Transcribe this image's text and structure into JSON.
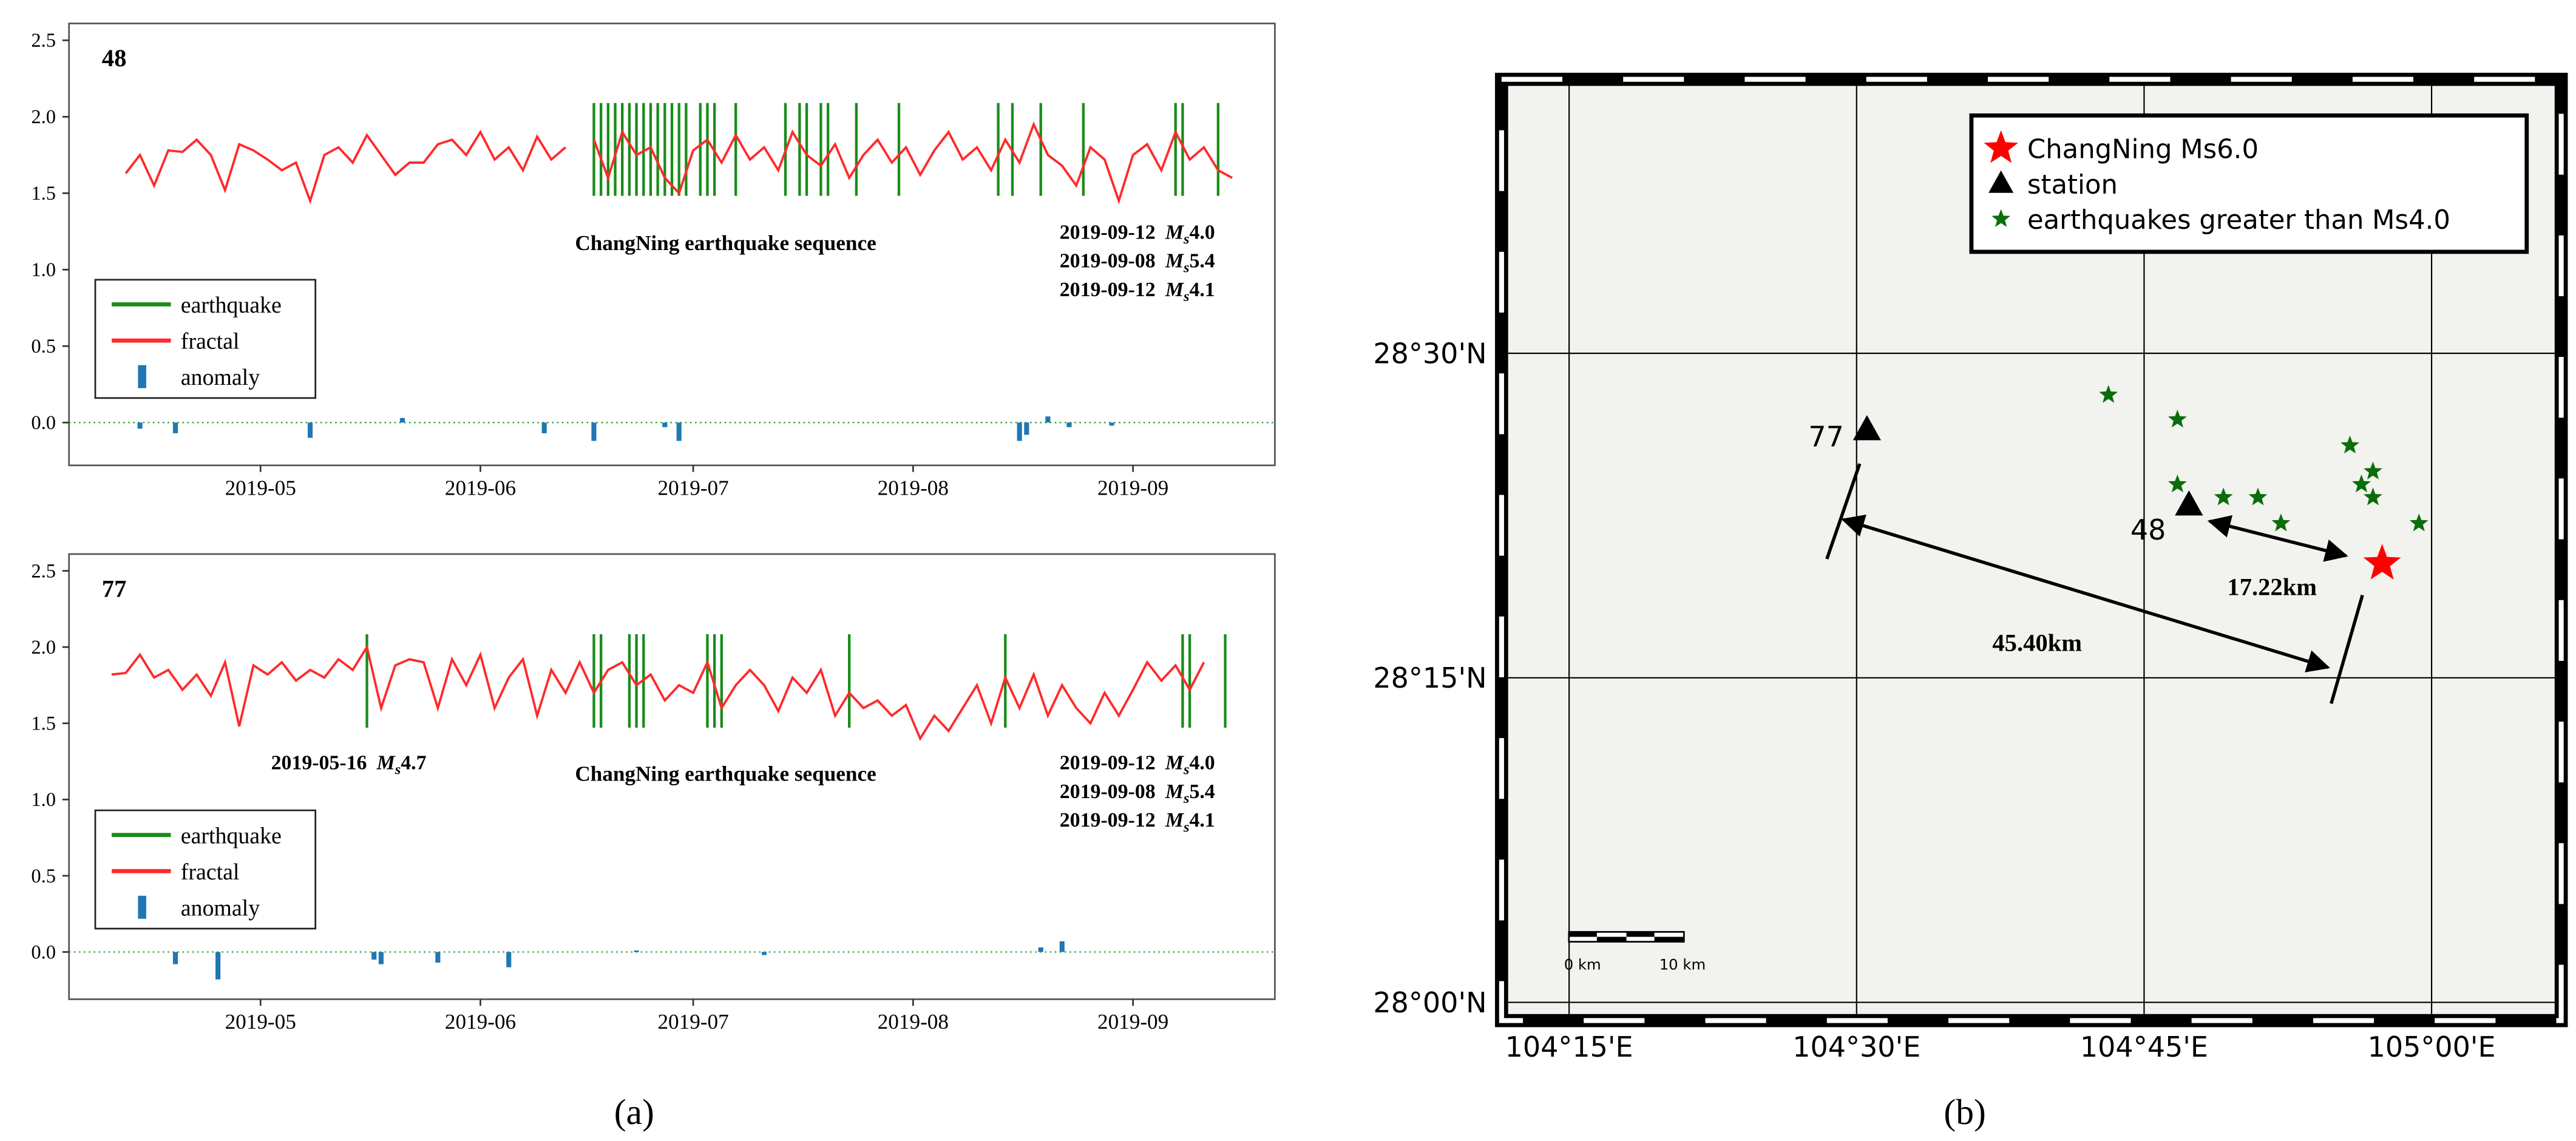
{
  "chart_data": [
    {
      "type": "line",
      "title": "48",
      "xlim": [
        94,
        264
      ],
      "xticks": [
        {
          "value": 121,
          "label": "2019-05"
        },
        {
          "value": 152,
          "label": "2019-06"
        },
        {
          "value": 182,
          "label": "2019-07"
        },
        {
          "value": 213,
          "label": "2019-08"
        },
        {
          "value": 244,
          "label": "2019-09"
        }
      ],
      "ylim": [
        -0.28,
        2.61
      ],
      "yticks": [
        {
          "value": 0,
          "label": "0.0"
        },
        0.5,
        {
          "value": 1,
          "label": "1.0"
        },
        1.5,
        {
          "value": 2,
          "label": "2.0"
        },
        2.5
      ],
      "series": [
        {
          "name": "earthquake",
          "color": "#1a8c1a",
          "x": [
            168,
            169,
            170,
            171,
            172,
            173,
            174,
            175,
            176,
            177,
            178,
            179,
            180,
            181,
            183,
            184,
            185,
            188,
            195,
            197,
            198,
            200,
            201,
            205,
            211,
            225,
            227,
            231,
            237,
            250,
            251,
            256
          ]
        },
        {
          "name": "fractal",
          "color": "#ff2a2a",
          "x": [
            102,
            104,
            106,
            108,
            110,
            112,
            114,
            116,
            118,
            120,
            122,
            124,
            126,
            128,
            130,
            132,
            134,
            136,
            138,
            140,
            142,
            144,
            146,
            148,
            150,
            152,
            154,
            156,
            158,
            160,
            162,
            164,
            166,
            168,
            170,
            172,
            174,
            176,
            178,
            180,
            182,
            184,
            186,
            188,
            190,
            192,
            194,
            196,
            198,
            200,
            202,
            204,
            206,
            208,
            210,
            212,
            214,
            216,
            218,
            220,
            222,
            224,
            226,
            228,
            230,
            232,
            234,
            236,
            238,
            240,
            242,
            244,
            246,
            248,
            250,
            252,
            254,
            256,
            258
          ],
          "values": [
            1.63,
            1.75,
            1.55,
            1.78,
            1.77,
            1.85,
            1.75,
            1.52,
            1.82,
            1.78,
            1.72,
            1.65,
            1.7,
            1.45,
            1.75,
            1.8,
            1.7,
            1.88,
            1.75,
            1.62,
            1.7,
            1.7,
            1.82,
            1.85,
            1.75,
            1.9,
            1.72,
            1.8,
            1.65,
            1.87,
            1.72,
            1.8,
            null,
            1.85,
            1.6,
            1.9,
            1.75,
            1.8,
            1.6,
            1.5,
            1.78,
            1.85,
            1.7,
            1.88,
            1.72,
            1.8,
            1.65,
            1.9,
            1.75,
            1.68,
            1.82,
            1.6,
            1.75,
            1.85,
            1.7,
            1.8,
            1.62,
            1.78,
            1.9,
            1.72,
            1.8,
            1.65,
            1.85,
            1.7,
            1.95,
            1.75,
            1.68,
            1.55,
            1.8,
            1.72,
            1.45,
            1.75,
            1.82,
            1.65,
            1.9,
            1.72,
            1.8,
            1.65,
            1.6
          ]
        },
        {
          "name": "anomaly",
          "color": "#1f77b4",
          "x": [
            104,
            109,
            128,
            141,
            161,
            168,
            178,
            180,
            228,
            229,
            232,
            235,
            241
          ],
          "values": [
            -0.04,
            -0.07,
            -0.1,
            0.03,
            -0.07,
            -0.12,
            -0.03,
            -0.12,
            -0.12,
            -0.08,
            0.04,
            -0.03,
            -0.02
          ]
        }
      ],
      "annotations": [
        "ChangNing earthquake sequence"
      ],
      "events": [
        {
          "date": "2019-09-12",
          "symbol": "M",
          "subscript": "s",
          "magnitude": "4.0"
        },
        {
          "date": "2019-09-08",
          "symbol": "M",
          "subscript": "s",
          "magnitude": "5.4"
        },
        {
          "date": "2019-09-12",
          "symbol": "M",
          "subscript": "s",
          "magnitude": "4.1"
        }
      ]
    },
    {
      "type": "line",
      "title": "77",
      "xlim": [
        94,
        264
      ],
      "xticks": [
        {
          "value": 121,
          "label": "2019-05"
        },
        {
          "value": 152,
          "label": "2019-06"
        },
        {
          "value": 182,
          "label": "2019-07"
        },
        {
          "value": 213,
          "label": "2019-08"
        },
        {
          "value": 244,
          "label": "2019-09"
        }
      ],
      "ylim": [
        -0.31,
        2.61
      ],
      "yticks": [
        {
          "value": 0,
          "label": "0.0"
        },
        0.5,
        {
          "value": 1,
          "label": "1.0"
        },
        1.5,
        {
          "value": 2,
          "label": "2.0"
        },
        2.5
      ],
      "series": [
        {
          "name": "earthquake",
          "color": "#1a8c1a",
          "x": [
            136,
            168,
            169,
            173,
            174,
            175,
            184,
            185,
            186,
            204,
            226,
            251,
            252,
            257
          ]
        },
        {
          "name": "fractal",
          "color": "#ff2a2a",
          "x": [
            100,
            102,
            104,
            106,
            108,
            110,
            112,
            114,
            116,
            118,
            120,
            122,
            124,
            126,
            128,
            130,
            132,
            134,
            136,
            138,
            140,
            142,
            144,
            146,
            148,
            150,
            152,
            154,
            156,
            158,
            160,
            162,
            164,
            166,
            168,
            170,
            172,
            174,
            176,
            178,
            180,
            182,
            184,
            186,
            188,
            190,
            192,
            194,
            196,
            198,
            200,
            202,
            204,
            206,
            208,
            210,
            212,
            214,
            216,
            218,
            220,
            222,
            224,
            226,
            228,
            230,
            232,
            234,
            236,
            238,
            240,
            242,
            244,
            246,
            248,
            250,
            252,
            254
          ],
          "values": [
            1.82,
            1.83,
            1.95,
            1.8,
            1.85,
            1.72,
            1.82,
            1.68,
            1.9,
            1.48,
            1.88,
            1.82,
            1.9,
            1.78,
            1.85,
            1.8,
            1.92,
            1.85,
            2.0,
            1.6,
            1.88,
            1.92,
            1.9,
            1.6,
            1.92,
            1.75,
            1.95,
            1.6,
            1.8,
            1.92,
            1.55,
            1.85,
            1.7,
            1.9,
            1.7,
            1.85,
            1.9,
            1.75,
            1.82,
            1.65,
            1.75,
            1.7,
            1.9,
            1.6,
            1.75,
            1.85,
            1.75,
            1.58,
            1.8,
            1.7,
            1.85,
            1.55,
            1.7,
            1.6,
            1.65,
            1.55,
            1.62,
            1.4,
            1.55,
            1.45,
            1.6,
            1.75,
            1.5,
            1.8,
            1.6,
            1.82,
            1.55,
            1.75,
            1.6,
            1.5,
            1.7,
            1.55,
            1.72,
            1.9,
            1.78,
            1.88,
            1.72,
            1.9
          ]
        },
        {
          "name": "anomaly",
          "color": "#1f77b4",
          "x": [
            109,
            115,
            137,
            138,
            146,
            156,
            174,
            192,
            231,
            234
          ],
          "values": [
            -0.08,
            -0.18,
            -0.05,
            -0.08,
            -0.07,
            -0.1,
            0.01,
            -0.02,
            0.03,
            0.07
          ]
        }
      ],
      "annotations": [
        "ChangNing earthquake sequence"
      ],
      "events": [
        {
          "date": "2019-05-16",
          "symbol": "M",
          "subscript": "s",
          "magnitude": "4.7"
        },
        {
          "date": "2019-09-12",
          "symbol": "M",
          "subscript": "s",
          "magnitude": "4.0"
        },
        {
          "date": "2019-09-08",
          "symbol": "M",
          "subscript": "s",
          "magnitude": "5.4"
        },
        {
          "date": "2019-09-12",
          "symbol": "M",
          "subscript": "s",
          "magnitude": "4.1"
        }
      ]
    },
    {
      "type": "scatter",
      "xlim": [
        104.197,
        105.107
      ],
      "ylim": [
        27.991,
        28.706
      ],
      "xticks": [
        {
          "value": 104.25,
          "label": "104°15'E"
        },
        {
          "value": 104.5,
          "label": "104°30'E"
        },
        {
          "value": 104.75,
          "label": "104°45'E"
        },
        {
          "value": 105,
          "label": "105°00'E"
        }
      ],
      "yticks": [
        {
          "value": 28,
          "label": "28°00'N"
        },
        {
          "value": 28.25,
          "label": "28°15'N"
        },
        {
          "value": 28.5,
          "label": "28°30'N"
        }
      ],
      "grid": true,
      "legend": "upper right",
      "series": [
        {
          "name": "ChangNing Ms6.0",
          "color": "#ff0000",
          "marker": "star",
          "x": [
            104.957
          ],
          "values": [
            28.338
          ]
        },
        {
          "name": "station",
          "color": "#000000",
          "marker": "triangle",
          "x": [
            104.509,
            104.789
          ],
          "values": [
            28.441,
            28.383
          ],
          "labels": [
            "77",
            "48"
          ]
        },
        {
          "name": "earthquakes greater than Ms4.0",
          "color": "#0a6e0a",
          "marker": "star",
          "x": [
            104.719,
            104.779,
            104.779,
            104.819,
            104.849,
            104.869,
            104.929,
            104.939,
            104.949,
            104.949,
            104.989
          ],
          "values": [
            28.468,
            28.449,
            28.399,
            28.389,
            28.389,
            28.369,
            28.429,
            28.399,
            28.409,
            28.389,
            28.369
          ]
        }
      ],
      "distances": [
        "45.40km",
        "17.22km"
      ],
      "scale_bar": [
        "0 km",
        "10 km"
      ]
    }
  ],
  "panel_labels": [
    "(a)",
    "(b)"
  ]
}
